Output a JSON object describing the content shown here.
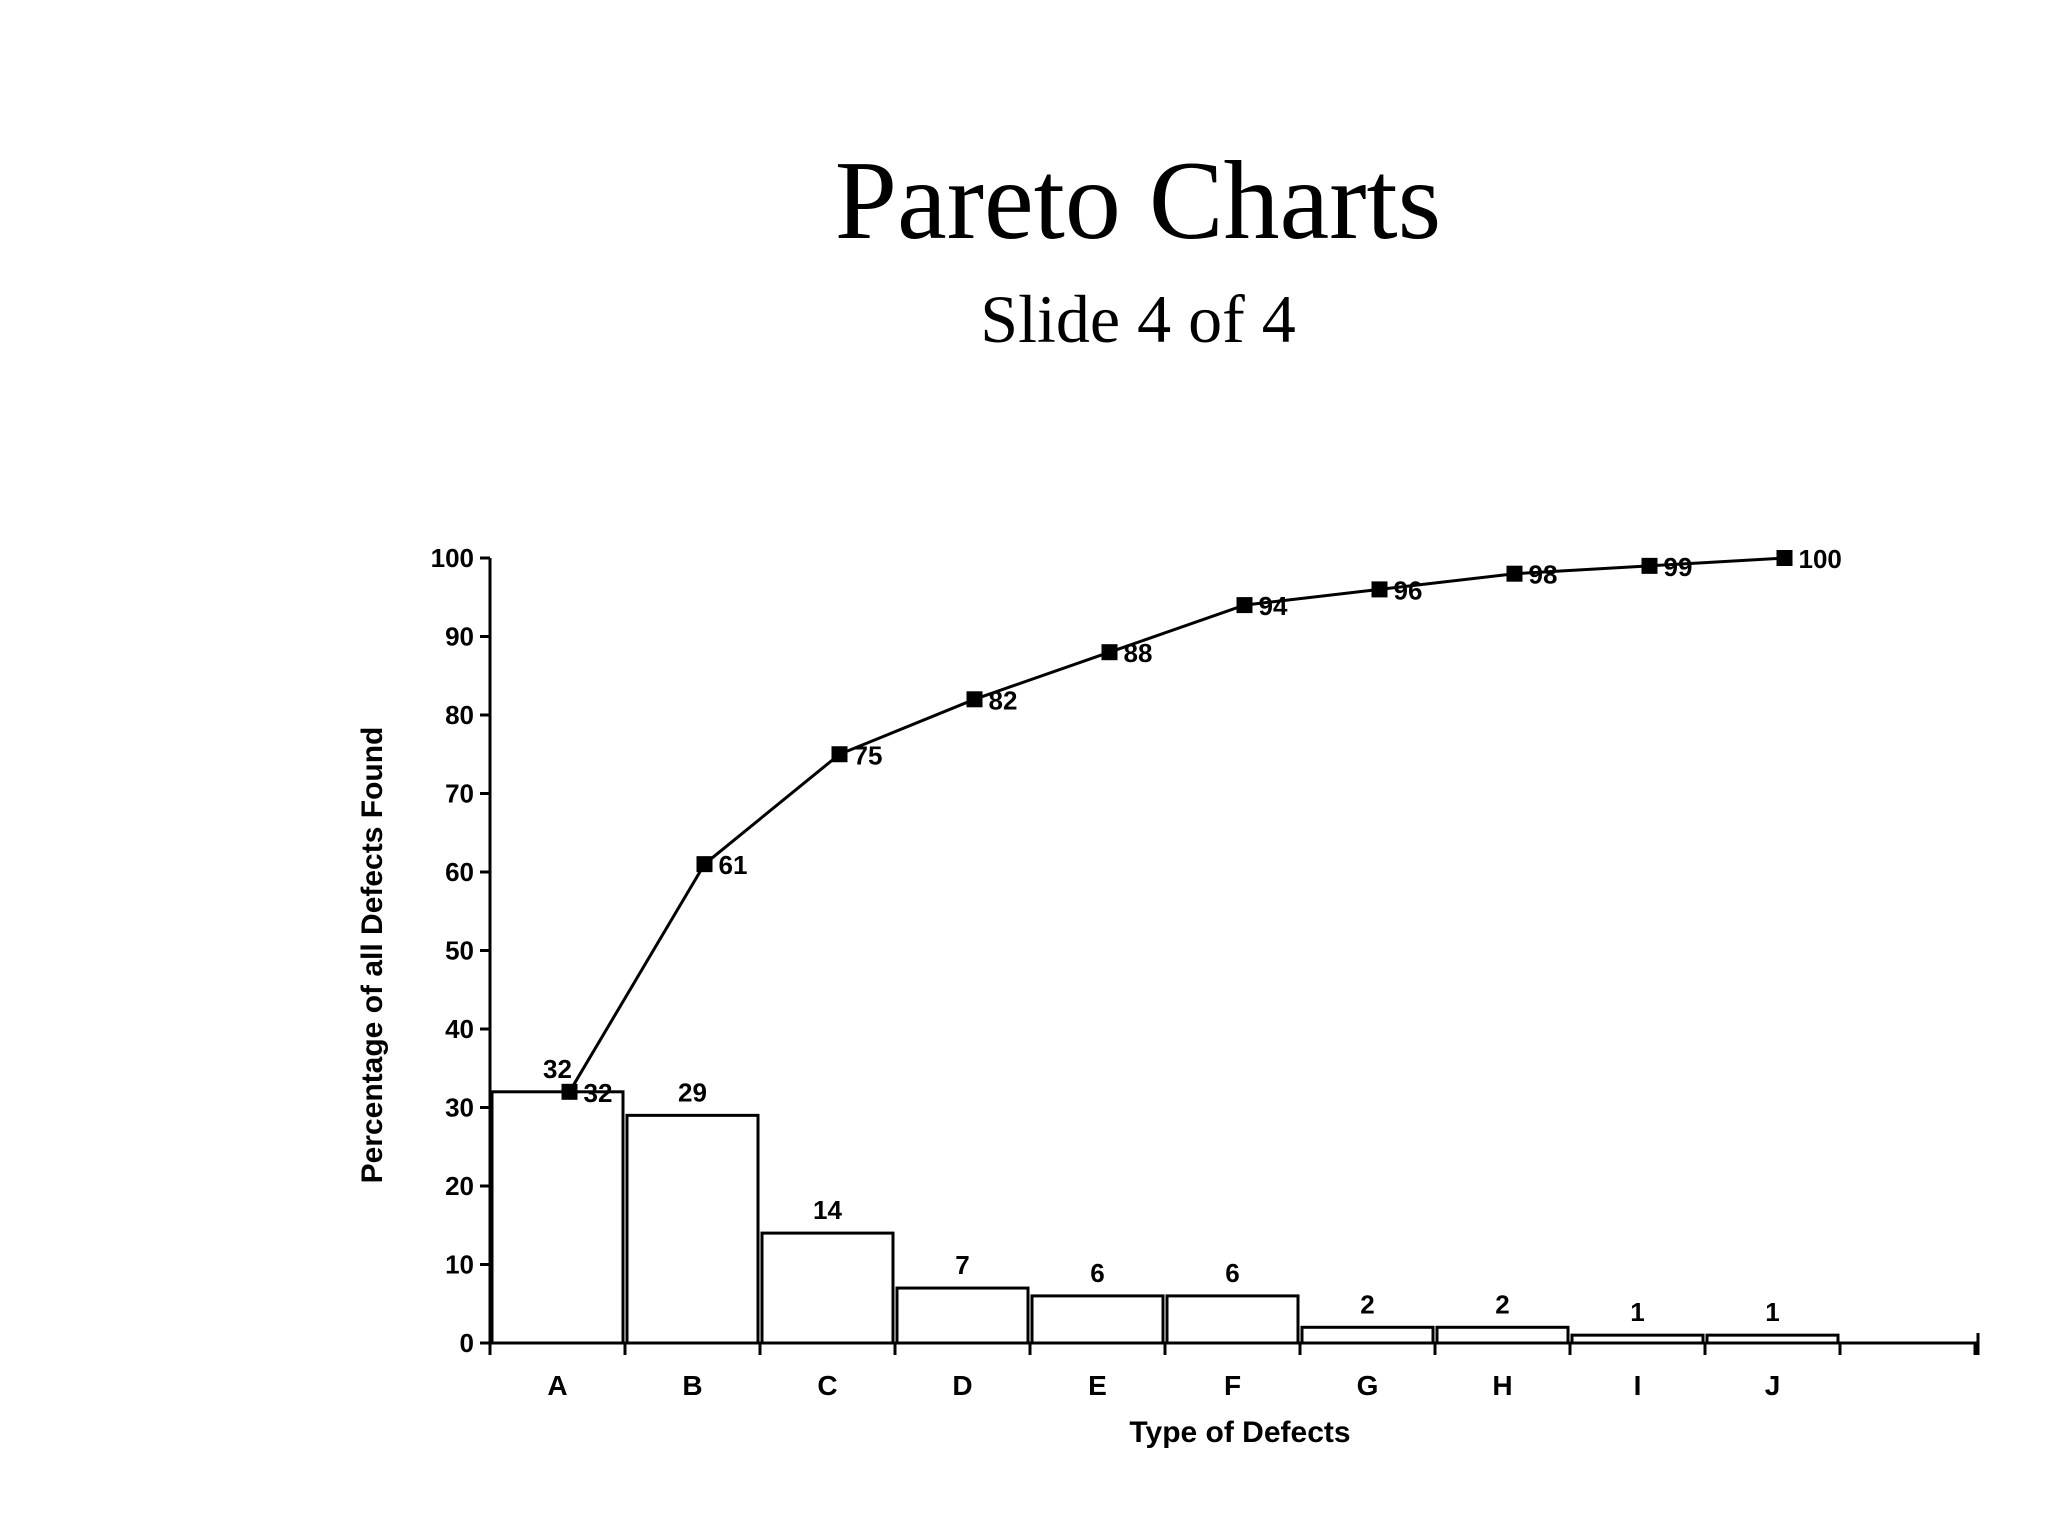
{
  "slide": {
    "title": "Pareto Charts",
    "subtitle": "Slide 4 of 4"
  },
  "chart_data": {
    "type": "bar",
    "categories": [
      "A",
      "B",
      "C",
      "D",
      "E",
      "F",
      "G",
      "H",
      "I",
      "J"
    ],
    "series": [
      {
        "type": "bar",
        "values": [
          32,
          29,
          14,
          7,
          6,
          6,
          2,
          2,
          1,
          1
        ],
        "labels": [
          "32",
          "29",
          "14",
          "7",
          "6",
          "6",
          "2",
          "2",
          "1",
          "1"
        ]
      },
      {
        "type": "line",
        "values": [
          32,
          61,
          75,
          82,
          88,
          94,
          96,
          98,
          99,
          100
        ],
        "labels": [
          "32",
          "61",
          "75",
          "82",
          "88",
          "94",
          "96",
          "98",
          "99",
          "100"
        ]
      }
    ],
    "xlabel": "Type of Defects",
    "ylabel": "Percentage of all Defects Found",
    "ylim": [
      0,
      100
    ],
    "yticks": [
      "0",
      "10",
      "20",
      "30",
      "40",
      "50",
      "60",
      "70",
      "80",
      "90",
      "100"
    ],
    "colors": {
      "bar_fill": "#ffffff",
      "bar_stroke": "#000000",
      "line": "#000000"
    },
    "grid": false,
    "legend": "none"
  }
}
